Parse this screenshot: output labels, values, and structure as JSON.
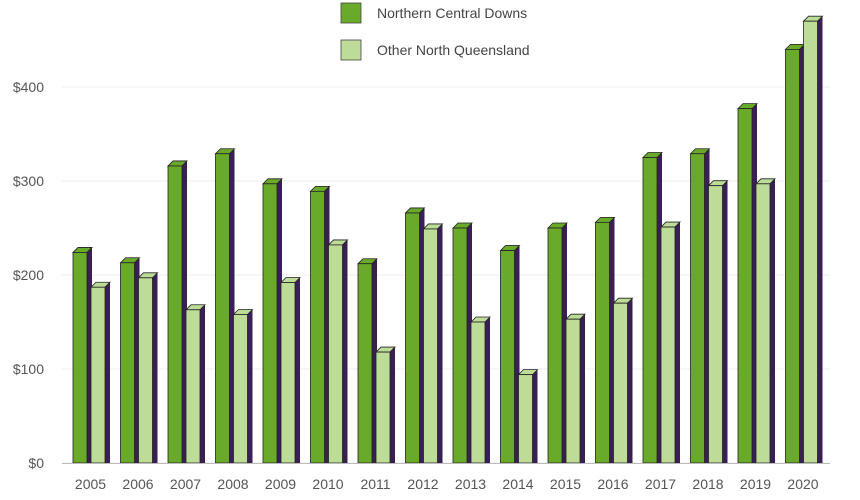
{
  "chart_data": {
    "type": "bar",
    "title": "",
    "xlabel": "",
    "ylabel": "",
    "ylim": [
      0,
      500
    ],
    "y_ticks": [
      0,
      100,
      200,
      300,
      400
    ],
    "y_tick_labels": [
      "$0",
      "$100",
      "$200",
      "$300",
      "$400"
    ],
    "grid": true,
    "legend_position": "top-center",
    "categories": [
      "2005",
      "2006",
      "2007",
      "2008",
      "2009",
      "2010",
      "2011",
      "2012",
      "2013",
      "2014",
      "2015",
      "2016",
      "2017",
      "2018",
      "2019",
      "2020"
    ],
    "series": [
      {
        "name": "Northern Central Downs",
        "color": "#6aaa2a",
        "values": [
          224,
          213,
          316,
          329,
          297,
          289,
          212,
          266,
          250,
          226,
          250,
          256,
          325,
          329,
          377,
          440
        ]
      },
      {
        "name": "Other North Queensland",
        "color": "#bcdc98",
        "values": [
          187,
          197,
          163,
          158,
          192,
          232,
          118,
          249,
          150,
          94,
          153,
          170,
          251,
          295,
          297,
          470
        ]
      }
    ],
    "bar_side_color": "#3a1f55"
  }
}
